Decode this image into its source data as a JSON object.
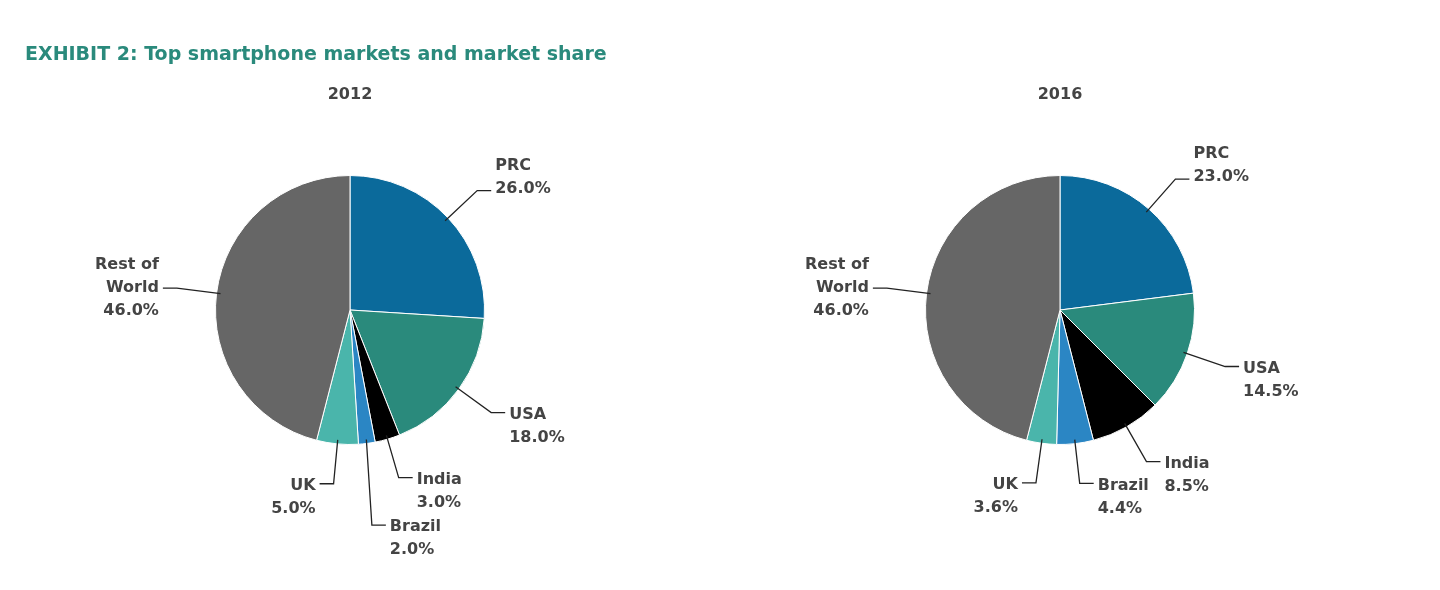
{
  "chart_data": [
    {
      "type": "pie",
      "title": "EXHIBIT 2:  Top smartphone markets and market share",
      "subtitle": "2012",
      "categories": [
        "PRC",
        "USA",
        "India",
        "Brazil",
        "UK",
        "Rest of World"
      ],
      "values": [
        26.0,
        18.0,
        3.0,
        2.0,
        5.0,
        46.0
      ],
      "value_labels": [
        "26.0%",
        "18.0%",
        "3.0%",
        "2.0%",
        "5.0%",
        "46.0%"
      ],
      "colors": [
        "#0b6a9b",
        "#2a8a7c",
        "#000000",
        "#2b86c4",
        "#4ab5ab",
        "#666666"
      ]
    },
    {
      "type": "pie",
      "title": "2016",
      "categories": [
        "PRC",
        "USA",
        "India",
        "Brazil",
        "UK",
        "Rest of World"
      ],
      "values": [
        23.0,
        14.5,
        8.5,
        4.4,
        3.6,
        46.0
      ],
      "value_labels": [
        "23.0%",
        "14.5%",
        "8.5%",
        "4.4%",
        "3.6%",
        "46.0%"
      ],
      "colors": [
        "#0b6a9b",
        "#2a8a7c",
        "#000000",
        "#2b86c4",
        "#4ab5ab",
        "#666666"
      ]
    }
  ]
}
